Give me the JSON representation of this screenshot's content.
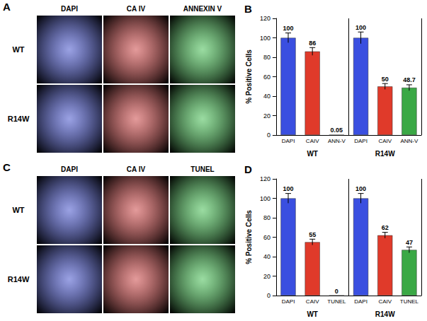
{
  "chart_data": [
    {
      "type": "bar",
      "title": "B",
      "y_label": "% Positive Cells",
      "categories": [
        "DAPI",
        "CAIV",
        "ANN-V",
        "DAPI",
        "CAIV",
        "ANN-V"
      ],
      "groups": [
        "WT",
        "R14W"
      ],
      "values": [
        100,
        86,
        0.05,
        100,
        50,
        48.7
      ],
      "errors": [
        5,
        4,
        0,
        6,
        3,
        3
      ],
      "colors": [
        "#3a4fe0",
        "#e03a2a",
        "#3aa845",
        "#3a4fe0",
        "#e03a2a",
        "#3aa845"
      ],
      "ylim": [
        0,
        120
      ],
      "yticks": [
        0,
        20,
        40,
        60,
        80,
        100,
        120
      ],
      "grid": false,
      "data_labels": true
    },
    {
      "type": "bar",
      "title": "D",
      "y_label": "% Positive Cells",
      "categories": [
        "DAPI",
        "CAIV",
        "TUNEL",
        "DAPI",
        "CAIV",
        "TUNEL"
      ],
      "groups": [
        "WT",
        "R14W"
      ],
      "values": [
        100,
        55,
        0,
        100,
        62,
        47
      ],
      "errors": [
        5,
        3,
        0,
        5,
        3,
        3
      ],
      "colors": [
        "#3a4fe0",
        "#e03a2a",
        "#3aa845",
        "#3a4fe0",
        "#e03a2a",
        "#3aa845"
      ],
      "ylim": [
        0,
        120
      ],
      "yticks": [
        0,
        20,
        40,
        60,
        80,
        100,
        120
      ],
      "grid": false,
      "data_labels": true
    }
  ],
  "image_panels": [
    {
      "label": "A",
      "columns": [
        "DAPI",
        "CA IV",
        "ANNEXIN V"
      ],
      "rows": [
        "WT",
        "R14W"
      ]
    },
    {
      "label": "C",
      "columns": [
        "DAPI",
        "CA IV",
        "TUNEL"
      ],
      "rows": [
        "WT",
        "R14W"
      ]
    }
  ]
}
